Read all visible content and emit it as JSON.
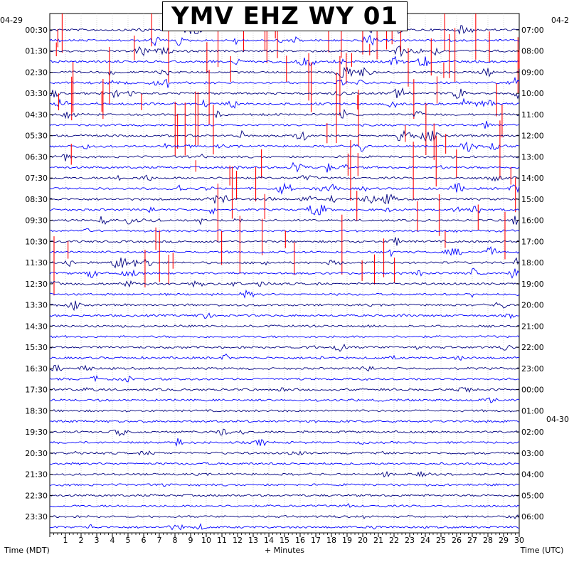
{
  "chart_data": {
    "type": "line",
    "title": "YMV EHZ WY 01",
    "xlabel": "+ Minutes",
    "left_axis_label": "Time (MDT)",
    "right_axis_label": "Time (UTC)",
    "left_date_label": "04-29",
    "right_date_label": "04-2",
    "right_date_label_2": "04-30",
    "x_ticks": [
      "1",
      "2",
      "3",
      "4",
      "5",
      "6",
      "7",
      "8",
      "9",
      "10",
      "11",
      "12",
      "13",
      "14",
      "15",
      "16",
      "17",
      "18",
      "19",
      "20",
      "21",
      "22",
      "23",
      "24",
      "25",
      "26",
      "27",
      "28",
      "29",
      "30"
    ],
    "xlim": [
      0,
      30
    ],
    "left_ticks": [
      "00:30",
      "01:30",
      "02:30",
      "03:30",
      "04:30",
      "05:30",
      "06:30",
      "07:30",
      "08:30",
      "09:30",
      "10:30",
      "11:30",
      "12:30",
      "13:30",
      "14:30",
      "15:30",
      "16:30",
      "17:30",
      "18:30",
      "19:30",
      "20:30",
      "21:30",
      "22:30",
      "23:30"
    ],
    "right_ticks": [
      "07:00",
      "08:00",
      "09:00",
      "10:00",
      "11:00",
      "12:00",
      "13:00",
      "14:00",
      "15:00",
      "16:00",
      "17:00",
      "18:00",
      "19:00",
      "20:00",
      "21:00",
      "22:00",
      "23:00",
      "00:00",
      "01:00",
      "02:00",
      "03:00",
      "04:00",
      "05:00",
      "06:00"
    ],
    "trace_colors": [
      "#00007f",
      "#0000ff"
    ],
    "clip_color": "#ff0000",
    "rows": 48,
    "rows_per_hour": 2,
    "grid": true
  }
}
